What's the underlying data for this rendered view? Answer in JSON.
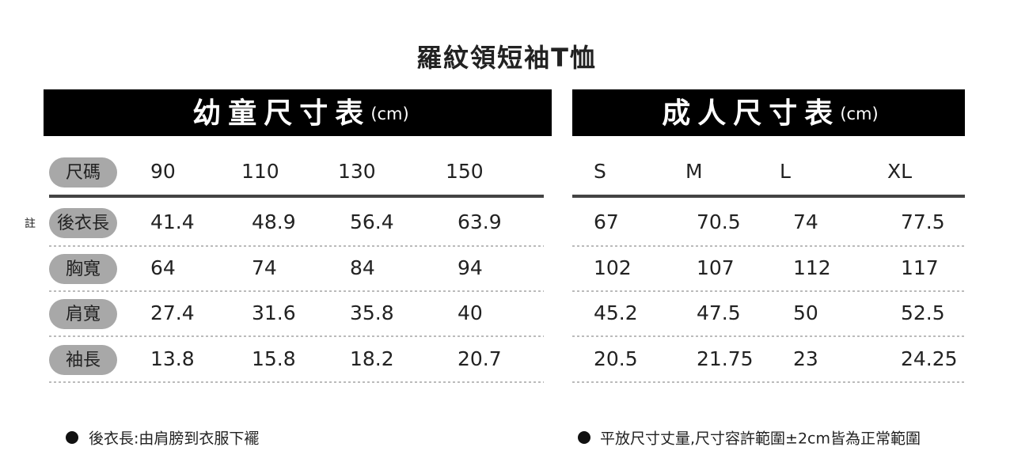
{
  "title": "羅紋領短袖T恤",
  "size_label": "尺碼",
  "note_marker": "註",
  "row_labels": [
    "後衣長",
    "胸寬",
    "肩寬",
    "袖長"
  ],
  "kids": {
    "heading": "幼童尺寸表",
    "unit": "(cm)",
    "sizes": [
      "90",
      "110",
      "130",
      "150"
    ],
    "rows": [
      [
        "41.4",
        "48.9",
        "56.4",
        "63.9"
      ],
      [
        "64",
        "74",
        "84",
        "94"
      ],
      [
        "27.4",
        "31.6",
        "35.8",
        "40"
      ],
      [
        "13.8",
        "15.8",
        "18.2",
        "20.7"
      ]
    ]
  },
  "adult": {
    "heading": "成人尺寸表",
    "unit": "(cm)",
    "sizes": [
      "S",
      "M",
      "L",
      "XL"
    ],
    "rows": [
      [
        "67",
        "70.5",
        "74",
        "77.5"
      ],
      [
        "102",
        "107",
        "112",
        "117"
      ],
      [
        "45.2",
        "47.5",
        "50",
        "52.5"
      ],
      [
        "20.5",
        "21.75",
        "23",
        "24.25"
      ]
    ]
  },
  "notes": [
    "後衣長:由肩膀到衣服下襬",
    "平放尺寸丈量,尺寸容許範圍±2cm皆為正常範圍"
  ]
}
